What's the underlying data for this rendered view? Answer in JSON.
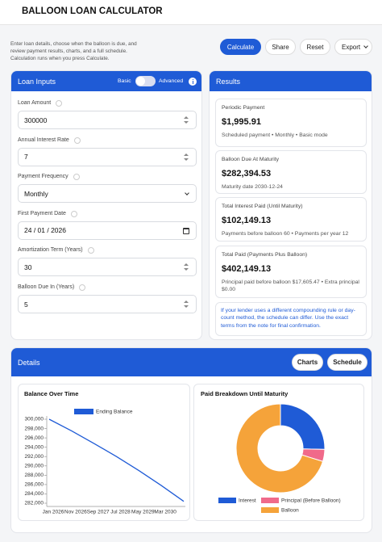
{
  "header": {
    "title": "BALLOON LOAN CALCULATOR"
  },
  "intro": "Enter loan details, choose when the balloon is due, and review payment results, charts, and a full schedule. Calculation runs when you press Calculate.",
  "toolbar": [
    "Calculate",
    "Share",
    "Reset",
    "Export"
  ],
  "inputs": {
    "title": "Loan Inputs",
    "mode": [
      "Basic",
      "Advanced"
    ],
    "fields": [
      {
        "label": "Loan Amount",
        "value": "300000"
      },
      {
        "label": "Annual Interest Rate",
        "value": "7"
      },
      {
        "label": "Payment Frequency",
        "value": "Monthly"
      },
      {
        "label": "First Payment Date",
        "value": "24 / 01 / 2026"
      },
      {
        "label": "Amortization Term (Years)",
        "value": "30"
      },
      {
        "label": "Balloon Due In (Years)",
        "value": "5"
      }
    ]
  },
  "results": {
    "title": "Results",
    "cards": [
      {
        "label": "Periodic Payment",
        "value": "$1,995.91",
        "note": "Scheduled payment • Monthly • Basic mode"
      },
      {
        "label": "Balloon Due At Maturity",
        "value": "$282,394.53",
        "note": "Maturity date 2030-12-24"
      },
      {
        "label": "Total Interest Paid (Until Maturity)",
        "value": "$102,149.13",
        "note": "Payments before balloon 60 • Payments per year 12"
      },
      {
        "label": "Total Paid (Payments Plus Balloon)",
        "value": "$402,149.13",
        "note": "Principal paid before balloon $17,605.47 • Extra principal $0.00"
      }
    ],
    "notice": "If your lender uses a different compounding rule or day-count method, the schedule can differ. Use the exact terms from the note for final confirmation."
  },
  "details": {
    "title": "Details",
    "tabs": [
      "Charts",
      "Schedule"
    ]
  },
  "chart_data": [
    {
      "type": "line",
      "title": "Balance Over Time",
      "categories": [
        "Jan 2026",
        "Nov 2026",
        "Sep 2027",
        "Jul 2028",
        "May 2029",
        "Mar 2030",
        null
      ],
      "series": [
        {
          "name": "Ending Balance",
          "color": "#1f5bd6",
          "values": [
            300000,
            297500,
            294800,
            292000,
            289000,
            285800,
            282400
          ]
        }
      ],
      "ylim": [
        282000,
        300000
      ],
      "yticks": [
        {
          "value": 282000,
          "label": "282,000"
        },
        {
          "value": 284000,
          "label": "284,000"
        },
        {
          "value": 286000,
          "label": "286,000"
        },
        {
          "value": 288000,
          "label": "288,000"
        },
        {
          "value": 290000,
          "label": "290,000"
        },
        {
          "value": 292000,
          "label": "292,000"
        },
        {
          "value": 294000,
          "label": "294,000"
        },
        {
          "value": 296000,
          "label": "296,000"
        },
        {
          "value": 298000,
          "label": "298,000"
        },
        {
          "value": 300000,
          "label": "300,000"
        }
      ]
    },
    {
      "type": "doughnut",
      "title": "Paid Breakdown Until Maturity",
      "categories": [
        "Interest",
        "Principal (Before Balloon)",
        "Balloon"
      ],
      "values": [
        102149.13,
        17605.47,
        282394.53
      ],
      "colors": [
        "#1f5bd6",
        "#f06a8a",
        "#f5a33a"
      ]
    }
  ]
}
